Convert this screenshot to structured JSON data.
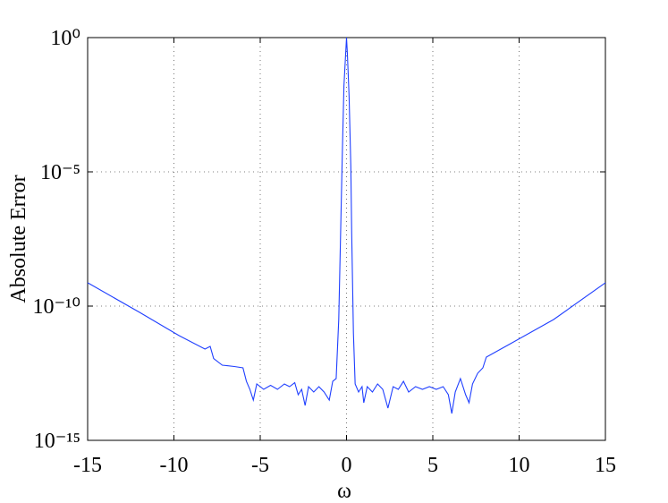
{
  "chart_data": {
    "type": "line",
    "xlabel": "ω",
    "ylabel": "Absolute Error",
    "color": "#1f3fff",
    "ylog": true,
    "grid": true,
    "xlim": [
      -15,
      15
    ],
    "xticks": [
      -15,
      -10,
      -5,
      0,
      5,
      10,
      15
    ],
    "ylim": [
      1e-15,
      1
    ],
    "yticks": [
      {
        "value": 1e-15,
        "label": "10⁻¹⁵"
      },
      {
        "value": 1e-10,
        "label": "10⁻¹⁰"
      },
      {
        "value": 1e-05,
        "label": "10⁻⁵"
      },
      {
        "value": 1,
        "label": "10⁰"
      }
    ],
    "x": [
      -15,
      -12,
      -9.7,
      -8.2,
      -7.9,
      -7.7,
      -7.2,
      -6.5,
      -6.0,
      -5.8,
      -5.6,
      -5.4,
      -5.2,
      -4.8,
      -4.4,
      -4.0,
      -3.6,
      -3.3,
      -3.0,
      -2.8,
      -2.6,
      -2.4,
      -2.2,
      -1.9,
      -1.6,
      -1.3,
      -1.0,
      -0.8,
      -0.6,
      -0.45,
      -0.35,
      -0.25,
      -0.15,
      -0.05,
      0,
      0.05,
      0.15,
      0.25,
      0.3,
      0.4,
      0.5,
      0.7,
      0.9,
      1.0,
      1.2,
      1.5,
      1.8,
      2.1,
      2.4,
      2.7,
      3.0,
      3.3,
      3.6,
      4.0,
      4.4,
      4.8,
      5.2,
      5.6,
      5.9,
      6.1,
      6.3,
      6.6,
      6.9,
      7.1,
      7.3,
      7.6,
      7.9,
      8.1,
      9.5,
      12,
      15
    ],
    "values": [
      7.41e-10,
      5.89e-11,
      7.94e-12,
      2.51e-12,
      3.16e-12,
      1.12e-12,
      6.31e-13,
      5.62e-13,
      5.01e-13,
      1.58e-13,
      7.94e-14,
      3.16e-14,
      1.26e-13,
      7.94e-14,
      1.12e-13,
      7.94e-14,
      1.26e-13,
      1e-13,
      1.41e-13,
      5.01e-14,
      7.94e-14,
      2e-14,
      1e-13,
      6.31e-14,
      1e-13,
      6.31e-14,
      3.16e-14,
      1.58e-13,
      2e-13,
      3.16e-11,
      3.16e-08,
      3.16e-05,
      0.0158,
      0.251,
      1,
      0.251,
      0.00631,
      1.58e-05,
      5.01e-08,
      1e-11,
      1.26e-13,
      6.31e-14,
      1e-13,
      2.51e-14,
      1e-13,
      6.31e-14,
      1.26e-13,
      7.94e-14,
      1.58e-14,
      1e-13,
      7.94e-14,
      1.58e-13,
      6.31e-14,
      1e-13,
      7.94e-14,
      1e-13,
      7.94e-14,
      1e-13,
      5.01e-14,
      1e-14,
      6.31e-14,
      2e-13,
      5.01e-14,
      2.51e-14,
      1.26e-13,
      3.16e-13,
      5.01e-13,
      1.26e-12,
      3.98e-12,
      3.16e-11,
      7.41e-10
    ]
  }
}
